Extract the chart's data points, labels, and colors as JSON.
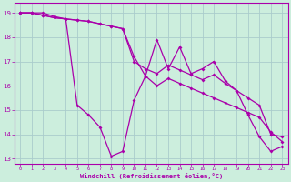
{
  "xlabel": "Windchill (Refroidissement éolien,°C)",
  "hours": [
    0,
    1,
    2,
    3,
    4,
    5,
    6,
    7,
    8,
    9,
    10,
    11,
    12,
    13,
    14,
    15,
    16,
    17,
    18,
    19,
    20,
    21,
    22,
    23
  ],
  "line1": [
    19.0,
    19.0,
    19.0,
    18.85,
    18.75,
    15.2,
    14.8,
    14.3,
    13.1,
    13.3,
    15.4,
    16.4,
    17.9,
    16.7,
    17.6,
    16.5,
    16.7,
    17.0,
    16.2,
    15.8,
    14.8,
    13.9,
    13.3,
    13.5
  ],
  "line2": [
    19.0,
    19.0,
    18.9,
    18.8,
    18.75,
    18.7,
    18.65,
    18.55,
    18.45,
    18.35,
    17.0,
    16.7,
    16.5,
    16.85,
    16.65,
    16.45,
    16.25,
    16.45,
    16.1,
    15.8,
    15.5,
    15.2,
    14.0,
    13.9
  ],
  "line3": [
    19.0,
    19.0,
    18.9,
    18.8,
    18.75,
    18.7,
    18.65,
    18.55,
    18.45,
    18.35,
    17.2,
    16.4,
    16.0,
    16.3,
    16.1,
    15.9,
    15.7,
    15.5,
    15.3,
    15.1,
    14.9,
    14.7,
    14.1,
    13.7
  ],
  "line_color": "#aa00aa",
  "bg_color": "#cceedd",
  "grid_color": "#aacccc",
  "ylim_min": 12.8,
  "ylim_max": 19.4,
  "xlim_min": -0.5,
  "xlim_max": 23.5,
  "yticks": [
    13,
    14,
    15,
    16,
    17,
    18,
    19
  ],
  "ytick_labels": [
    "13",
    "14",
    "15",
    "16",
    "17",
    "18",
    "19"
  ],
  "xtick_labels": [
    "0",
    "1",
    "2",
    "3",
    "4",
    "5",
    "6",
    "7",
    "8",
    "9",
    "10",
    "11",
    "12",
    "13",
    "14",
    "15",
    "16",
    "17",
    "18",
    "19",
    "20",
    "21",
    "22",
    "23"
  ]
}
